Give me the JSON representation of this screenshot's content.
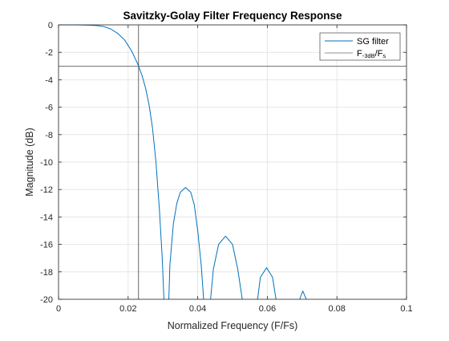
{
  "chart_data": {
    "type": "line",
    "title": "Savitzky-Golay Filter Frequency Response",
    "xlabel": "Normalized Frequency (F/Fs)",
    "ylabel": "Magnitude (dB)",
    "xlim": [
      0,
      0.1
    ],
    "ylim": [
      -20,
      0
    ],
    "xticks": [
      0,
      0.02,
      0.04,
      0.06,
      0.08,
      0.1
    ],
    "xtick_labels": [
      "0",
      "0.02",
      "0.04",
      "0.06",
      "0.08",
      "0.1"
    ],
    "yticks": [
      0,
      -2,
      -4,
      -6,
      -8,
      -10,
      -12,
      -14,
      -16,
      -18,
      -20
    ],
    "ytick_labels": [
      "0",
      "-2",
      "-4",
      "-6",
      "-8",
      "-10",
      "-12",
      "-14",
      "-16",
      "-18",
      "-20"
    ],
    "grid": true,
    "legend_position": "top-right",
    "series": [
      {
        "name": "SG filter",
        "color": "#0072bd",
        "segments": [
          [
            [
              0,
              0
            ],
            [
              0.005,
              0
            ],
            [
              0.009,
              -0.02
            ],
            [
              0.011,
              -0.05
            ],
            [
              0.013,
              -0.12
            ],
            [
              0.015,
              -0.3
            ],
            [
              0.017,
              -0.62
            ],
            [
              0.019,
              -1.1
            ],
            [
              0.021,
              -1.9
            ],
            [
              0.0225,
              -2.7
            ],
            [
              0.023,
              -3.0
            ],
            [
              0.024,
              -3.7
            ],
            [
              0.025,
              -4.6
            ],
            [
              0.026,
              -5.8
            ],
            [
              0.027,
              -7.5
            ],
            [
              0.028,
              -10.0
            ],
            [
              0.029,
              -13.5
            ],
            [
              0.0298,
              -17.0
            ],
            [
              0.0303,
              -20
            ]
          ],
          [
            [
              0.0317,
              -20
            ],
            [
              0.032,
              -17.5
            ],
            [
              0.033,
              -14.5
            ],
            [
              0.034,
              -13.0
            ],
            [
              0.035,
              -12.2
            ],
            [
              0.0365,
              -11.85
            ],
            [
              0.038,
              -12.2
            ],
            [
              0.039,
              -13.1
            ],
            [
              0.04,
              -15.0
            ],
            [
              0.041,
              -17.5
            ],
            [
              0.0417,
              -20
            ]
          ],
          [
            [
              0.0437,
              -20
            ],
            [
              0.0445,
              -17.8
            ],
            [
              0.046,
              -16.0
            ],
            [
              0.048,
              -15.4
            ],
            [
              0.05,
              -16.0
            ],
            [
              0.0515,
              -17.8
            ],
            [
              0.0528,
              -20
            ]
          ],
          [
            [
              0.0572,
              -20
            ],
            [
              0.058,
              -18.4
            ],
            [
              0.0598,
              -17.7
            ],
            [
              0.0615,
              -18.4
            ],
            [
              0.0625,
              -20
            ]
          ],
          [
            [
              0.0693,
              -20
            ],
            [
              0.0702,
              -19.4
            ],
            [
              0.0712,
              -20
            ]
          ]
        ]
      },
      {
        "name": "F-3dB/Fs",
        "color": "#262626",
        "vertical_line_x": 0.023,
        "horizontal_line_y": -3
      }
    ]
  },
  "legend": {
    "sg_label": "SG filter",
    "cutoff_main": "F",
    "cutoff_sub": "-3dB",
    "cutoff_div": "/F",
    "cutoff_sub2": "s"
  }
}
